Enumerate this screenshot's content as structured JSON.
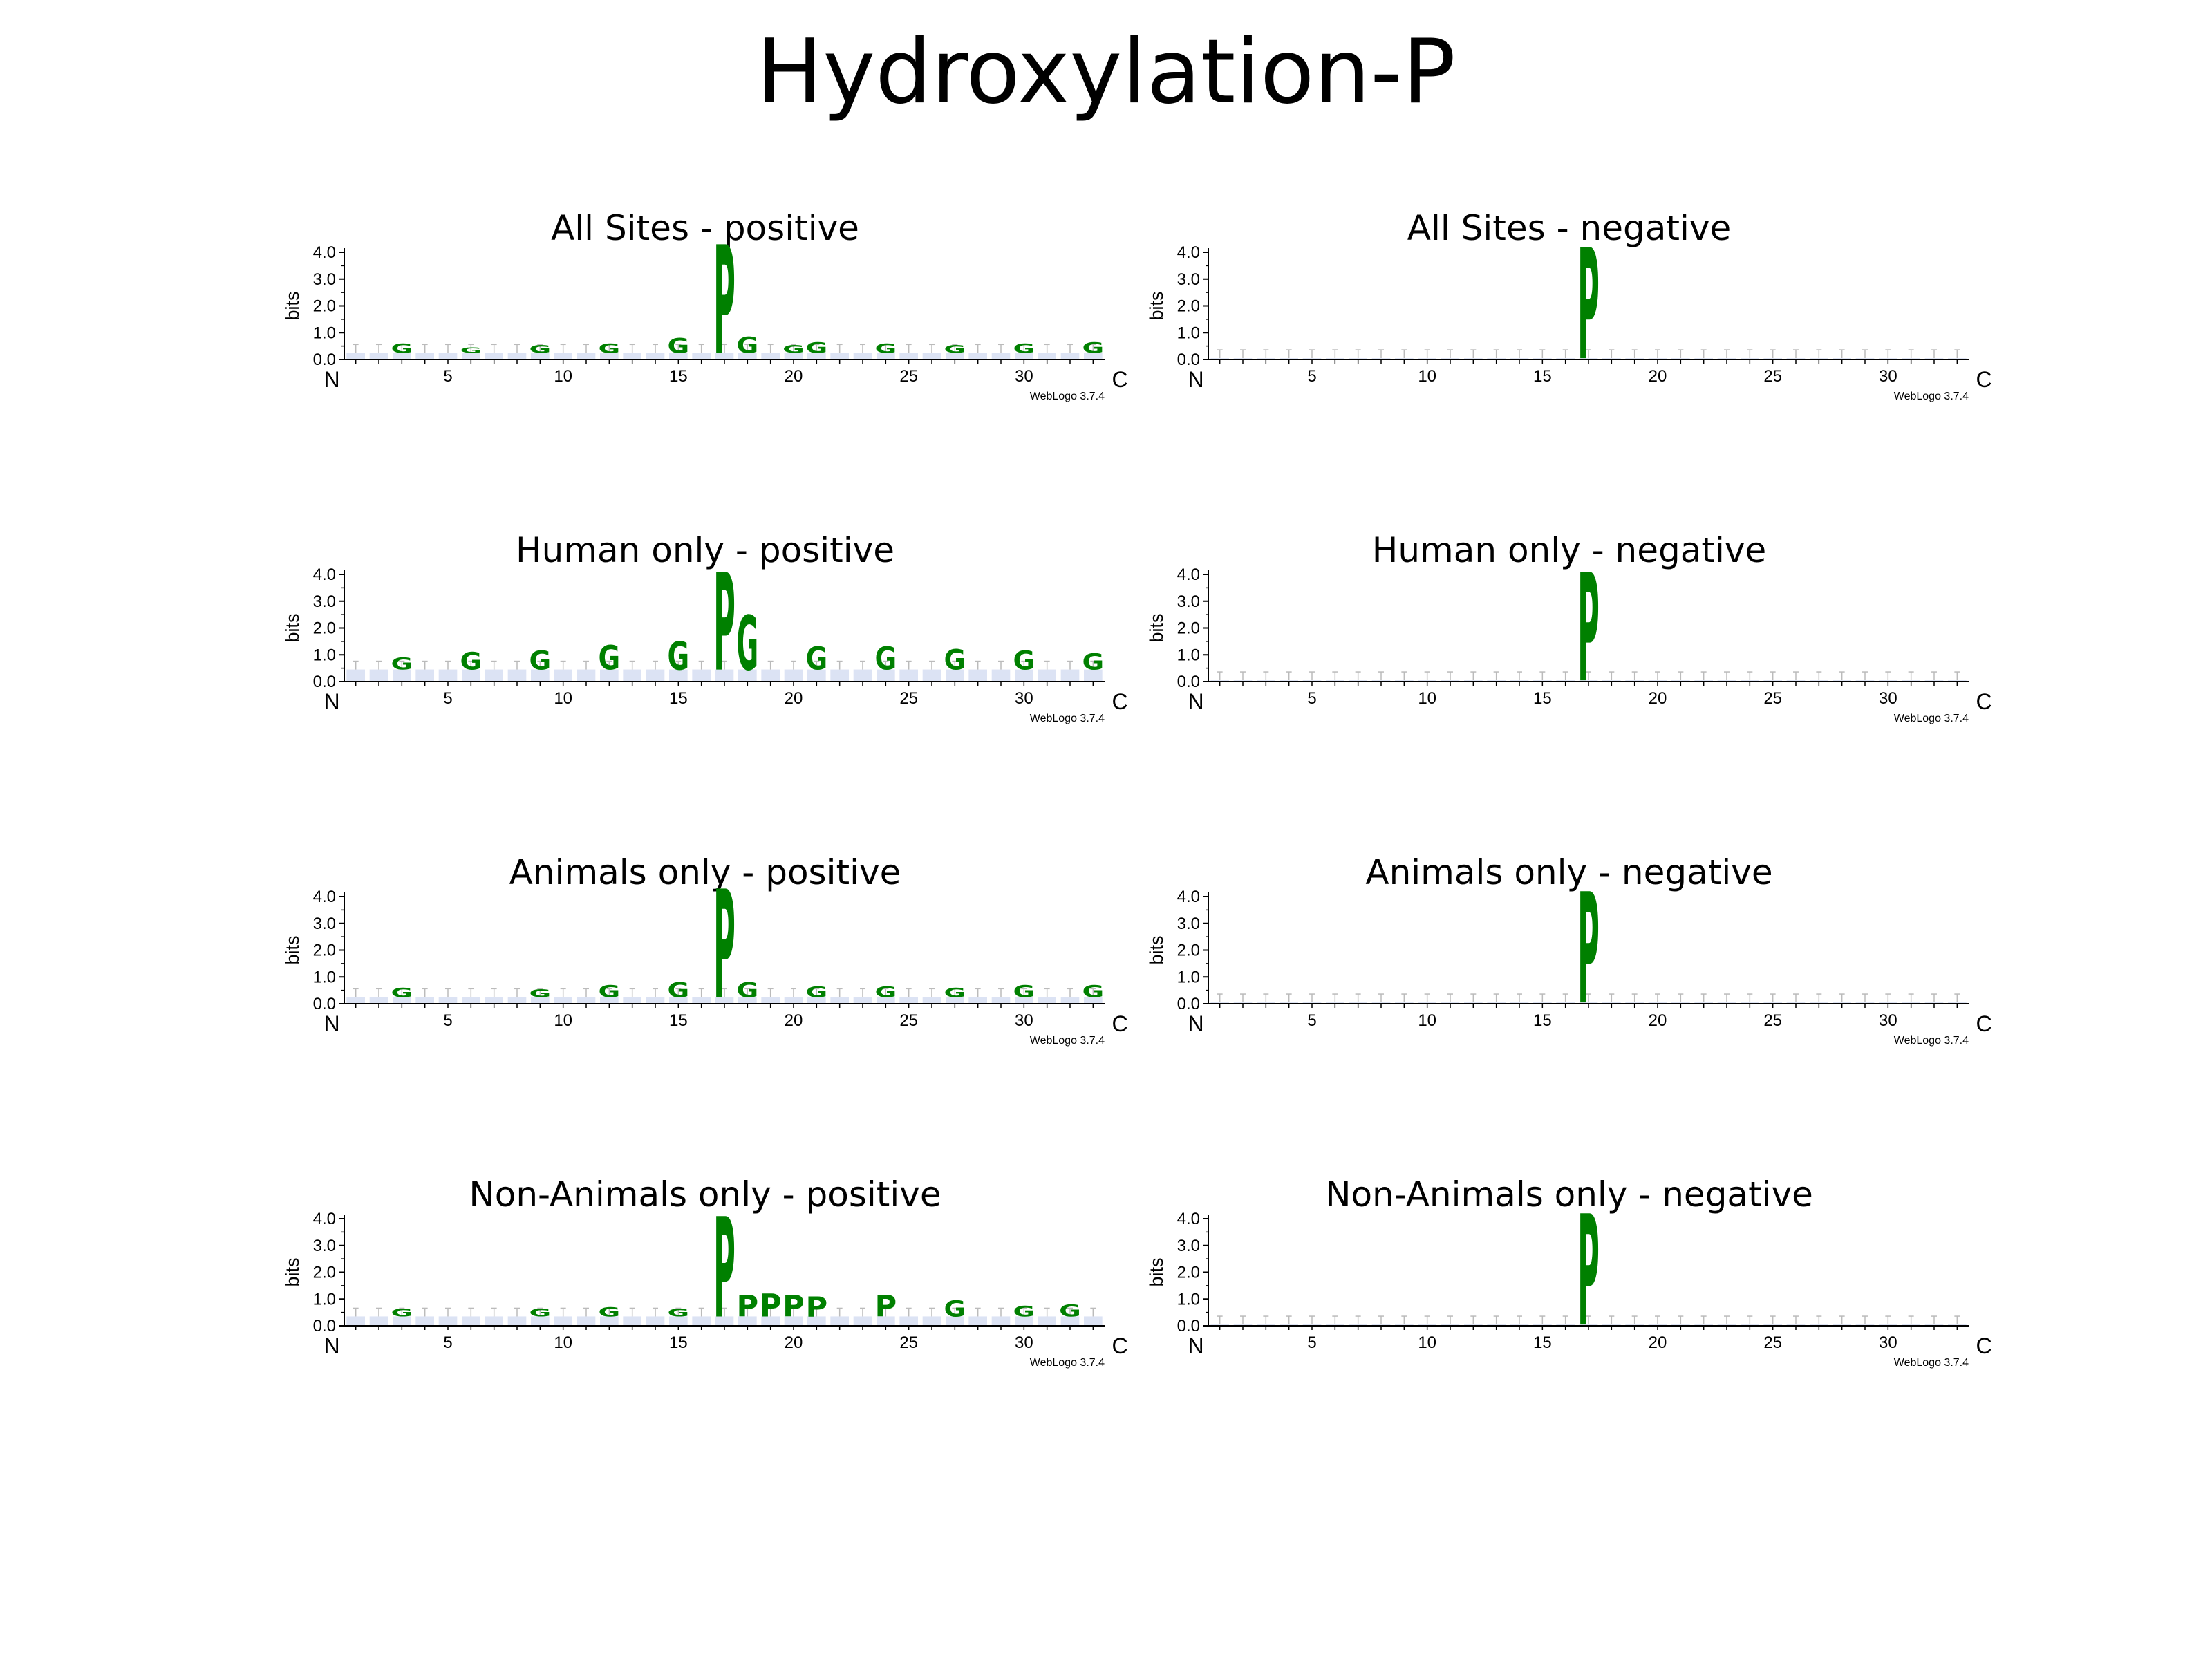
{
  "title": "Hydroxylation-P",
  "logo_credit": "WebLogo 3.7.4",
  "colors": {
    "G": "#008000",
    "P": "#008000",
    "S": "#008000",
    "T": "#008000",
    "L": "#000000",
    "A": "#000000",
    "V": "#000000",
    "K": "#0000cc",
    "R": "#0000cc",
    "E": "#cc0000",
    "D": "#cc0000",
    "axis": "#000000",
    "errorbar": "#bbbbbb"
  },
  "chart_data": [
    {
      "type": "sequence-logo",
      "title": "All Sites - positive",
      "ylabel": "bits",
      "ylim": [
        0,
        4.0
      ],
      "yticks": [
        "0.0",
        "1.0",
        "2.0",
        "3.0",
        "4.0"
      ],
      "xticks": [
        "5",
        "10",
        "15",
        "20",
        "25",
        "30"
      ],
      "x_start_label": "N",
      "x_end_label": "C",
      "positions": 33,
      "background_height": 0.25,
      "stacks": [
        {
          "pos": 3,
          "letters": [
            {
              "char": "G",
              "bits": 0.35
            }
          ]
        },
        {
          "pos": 6,
          "letters": [
            {
              "char": "G",
              "bits": 0.2
            }
          ]
        },
        {
          "pos": 9,
          "letters": [
            {
              "char": "G",
              "bits": 0.3
            }
          ]
        },
        {
          "pos": 12,
          "letters": [
            {
              "char": "G",
              "bits": 0.35
            }
          ]
        },
        {
          "pos": 15,
          "letters": [
            {
              "char": "G",
              "bits": 0.55
            }
          ]
        },
        {
          "pos": 17,
          "letters": [
            {
              "char": "P",
              "bits": 4.0
            }
          ]
        },
        {
          "pos": 18,
          "letters": [
            {
              "char": "G",
              "bits": 0.6
            }
          ]
        },
        {
          "pos": 20,
          "letters": [
            {
              "char": "G",
              "bits": 0.3
            }
          ]
        },
        {
          "pos": 21,
          "letters": [
            {
              "char": "G",
              "bits": 0.4
            }
          ]
        },
        {
          "pos": 24,
          "letters": [
            {
              "char": "G",
              "bits": 0.35
            }
          ]
        },
        {
          "pos": 27,
          "letters": [
            {
              "char": "G",
              "bits": 0.3
            }
          ]
        },
        {
          "pos": 30,
          "letters": [
            {
              "char": "G",
              "bits": 0.35
            }
          ]
        },
        {
          "pos": 33,
          "letters": [
            {
              "char": "G",
              "bits": 0.4
            }
          ]
        }
      ]
    },
    {
      "type": "sequence-logo",
      "title": "All Sites - negative",
      "ylabel": "bits",
      "ylim": [
        0,
        4.0
      ],
      "yticks": [
        "0.0",
        "1.0",
        "2.0",
        "3.0",
        "4.0"
      ],
      "xticks": [
        "5",
        "10",
        "15",
        "20",
        "25",
        "30"
      ],
      "x_start_label": "N",
      "x_end_label": "C",
      "positions": 33,
      "background_height": 0.05,
      "stacks": [
        {
          "pos": 17,
          "letters": [
            {
              "char": "P",
              "bits": 4.1
            }
          ]
        }
      ]
    },
    {
      "type": "sequence-logo",
      "title": "Human only - positive",
      "ylabel": "bits",
      "ylim": [
        0,
        4.0
      ],
      "yticks": [
        "0.0",
        "1.0",
        "2.0",
        "3.0",
        "4.0"
      ],
      "xticks": [
        "5",
        "10",
        "15",
        "20",
        "25",
        "30"
      ],
      "x_start_label": "N",
      "x_end_label": "C",
      "positions": 33,
      "background_height": 0.45,
      "stacks": [
        {
          "pos": 3,
          "letters": [
            {
              "char": "G",
              "bits": 0.45
            }
          ]
        },
        {
          "pos": 6,
          "letters": [
            {
              "char": "G",
              "bits": 0.65
            }
          ]
        },
        {
          "pos": 9,
          "letters": [
            {
              "char": "G",
              "bits": 0.7
            }
          ]
        },
        {
          "pos": 12,
          "letters": [
            {
              "char": "G",
              "bits": 0.9
            }
          ]
        },
        {
          "pos": 15,
          "letters": [
            {
              "char": "G",
              "bits": 1.05
            }
          ]
        },
        {
          "pos": 17,
          "letters": [
            {
              "char": "P",
              "bits": 3.6
            }
          ]
        },
        {
          "pos": 18,
          "letters": [
            {
              "char": "G",
              "bits": 2.0
            }
          ]
        },
        {
          "pos": 21,
          "letters": [
            {
              "char": "G",
              "bits": 0.85
            }
          ]
        },
        {
          "pos": 24,
          "letters": [
            {
              "char": "G",
              "bits": 0.85
            }
          ]
        },
        {
          "pos": 27,
          "letters": [
            {
              "char": "G",
              "bits": 0.75
            }
          ]
        },
        {
          "pos": 30,
          "letters": [
            {
              "char": "G",
              "bits": 0.7
            }
          ]
        },
        {
          "pos": 33,
          "letters": [
            {
              "char": "G",
              "bits": 0.6
            }
          ]
        }
      ]
    },
    {
      "type": "sequence-logo",
      "title": "Human only - negative",
      "ylabel": "bits",
      "ylim": [
        0,
        4.0
      ],
      "yticks": [
        "0.0",
        "1.0",
        "2.0",
        "3.0",
        "4.0"
      ],
      "xticks": [
        "5",
        "10",
        "15",
        "20",
        "25",
        "30"
      ],
      "x_start_label": "N",
      "x_end_label": "C",
      "positions": 33,
      "background_height": 0.05,
      "stacks": [
        {
          "pos": 17,
          "letters": [
            {
              "char": "P",
              "bits": 4.0
            }
          ]
        }
      ]
    },
    {
      "type": "sequence-logo",
      "title": "Animals only - positive",
      "ylabel": "bits",
      "ylim": [
        0,
        4.0
      ],
      "yticks": [
        "0.0",
        "1.0",
        "2.0",
        "3.0",
        "4.0"
      ],
      "xticks": [
        "5",
        "10",
        "15",
        "20",
        "25",
        "30"
      ],
      "x_start_label": "N",
      "x_end_label": "C",
      "positions": 33,
      "background_height": 0.25,
      "stacks": [
        {
          "pos": 3,
          "letters": [
            {
              "char": "G",
              "bits": 0.35
            }
          ]
        },
        {
          "pos": 9,
          "letters": [
            {
              "char": "G",
              "bits": 0.3
            }
          ]
        },
        {
          "pos": 12,
          "letters": [
            {
              "char": "G",
              "bits": 0.45
            }
          ]
        },
        {
          "pos": 15,
          "letters": [
            {
              "char": "G",
              "bits": 0.55
            }
          ]
        },
        {
          "pos": 17,
          "letters": [
            {
              "char": "P",
              "bits": 4.0
            }
          ]
        },
        {
          "pos": 18,
          "letters": [
            {
              "char": "G",
              "bits": 0.55
            }
          ]
        },
        {
          "pos": 21,
          "letters": [
            {
              "char": "G",
              "bits": 0.4
            }
          ]
        },
        {
          "pos": 24,
          "letters": [
            {
              "char": "G",
              "bits": 0.4
            }
          ]
        },
        {
          "pos": 27,
          "letters": [
            {
              "char": "G",
              "bits": 0.35
            }
          ]
        },
        {
          "pos": 30,
          "letters": [
            {
              "char": "G",
              "bits": 0.45
            }
          ]
        },
        {
          "pos": 33,
          "letters": [
            {
              "char": "G",
              "bits": 0.45
            }
          ]
        }
      ]
    },
    {
      "type": "sequence-logo",
      "title": "Animals only - negative",
      "ylabel": "bits",
      "ylim": [
        0,
        4.0
      ],
      "yticks": [
        "0.0",
        "1.0",
        "2.0",
        "3.0",
        "4.0"
      ],
      "xticks": [
        "5",
        "10",
        "15",
        "20",
        "25",
        "30"
      ],
      "x_start_label": "N",
      "x_end_label": "C",
      "positions": 33,
      "background_height": 0.05,
      "stacks": [
        {
          "pos": 17,
          "letters": [
            {
              "char": "P",
              "bits": 4.1
            }
          ]
        }
      ]
    },
    {
      "type": "sequence-logo",
      "title": "Non-Animals only - positive",
      "ylabel": "bits",
      "ylim": [
        0,
        4.0
      ],
      "yticks": [
        "0.0",
        "1.0",
        "2.0",
        "3.0",
        "4.0"
      ],
      "xticks": [
        "5",
        "10",
        "15",
        "20",
        "25",
        "30"
      ],
      "x_start_label": "N",
      "x_end_label": "C",
      "positions": 33,
      "background_height": 0.35,
      "stacks": [
        {
          "pos": 3,
          "letters": [
            {
              "char": "G",
              "bits": 0.3
            }
          ]
        },
        {
          "pos": 9,
          "letters": [
            {
              "char": "G",
              "bits": 0.3
            }
          ]
        },
        {
          "pos": 12,
          "letters": [
            {
              "char": "G",
              "bits": 0.35
            }
          ]
        },
        {
          "pos": 15,
          "letters": [
            {
              "char": "G",
              "bits": 0.3
            }
          ]
        },
        {
          "pos": 17,
          "letters": [
            {
              "char": "P",
              "bits": 3.7
            }
          ]
        },
        {
          "pos": 18,
          "letters": [
            {
              "char": "P",
              "bits": 0.8
            }
          ]
        },
        {
          "pos": 19,
          "letters": [
            {
              "char": "P",
              "bits": 0.85
            }
          ]
        },
        {
          "pos": 20,
          "letters": [
            {
              "char": "P",
              "bits": 0.8
            }
          ]
        },
        {
          "pos": 21,
          "letters": [
            {
              "char": "P",
              "bits": 0.75
            }
          ]
        },
        {
          "pos": 24,
          "letters": [
            {
              "char": "P",
              "bits": 0.8
            }
          ]
        },
        {
          "pos": 27,
          "letters": [
            {
              "char": "G",
              "bits": 0.6
            }
          ]
        },
        {
          "pos": 30,
          "letters": [
            {
              "char": "G",
              "bits": 0.4
            }
          ]
        },
        {
          "pos": 32,
          "letters": [
            {
              "char": "G",
              "bits": 0.45
            }
          ]
        }
      ]
    },
    {
      "type": "sequence-logo",
      "title": "Non-Animals only - negative",
      "ylabel": "bits",
      "ylim": [
        0,
        4.0
      ],
      "yticks": [
        "0.0",
        "1.0",
        "2.0",
        "3.0",
        "4.0"
      ],
      "xticks": [
        "5",
        "10",
        "15",
        "20",
        "25",
        "30"
      ],
      "x_start_label": "N",
      "x_end_label": "C",
      "positions": 33,
      "background_height": 0.05,
      "stacks": [
        {
          "pos": 17,
          "letters": [
            {
              "char": "P",
              "bits": 4.1
            }
          ]
        }
      ]
    }
  ]
}
